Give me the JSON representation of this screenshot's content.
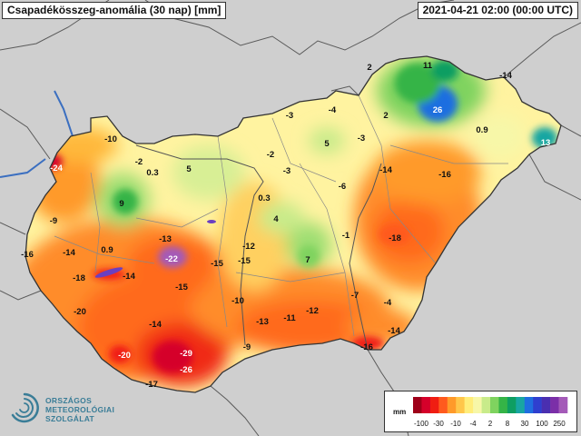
{
  "header": {
    "title": "Csapadékösszeg-anomália (30 nap) [mm]",
    "timestamp": "2021-04-21 02:00 (00:00 UTC)"
  },
  "map": {
    "country": "Hungary",
    "values": [
      {
        "id": "v01",
        "label": "11"
      },
      {
        "id": "v02",
        "label": "2"
      },
      {
        "id": "v03",
        "label": "-14"
      },
      {
        "id": "v04",
        "label": "26"
      },
      {
        "id": "v05",
        "label": "2"
      },
      {
        "id": "v06",
        "label": "0.9"
      },
      {
        "id": "v07",
        "label": "13"
      },
      {
        "id": "v08",
        "label": "-3"
      },
      {
        "id": "v09",
        "label": "-4"
      },
      {
        "id": "v10",
        "label": "5"
      },
      {
        "id": "v11",
        "label": "-3"
      },
      {
        "id": "v12",
        "label": "-10"
      },
      {
        "id": "v13",
        "label": "-24"
      },
      {
        "id": "v14",
        "label": "-2"
      },
      {
        "id": "v15",
        "label": "0.3"
      },
      {
        "id": "v16",
        "label": "5"
      },
      {
        "id": "v17",
        "label": "-2"
      },
      {
        "id": "v18",
        "label": "-3"
      },
      {
        "id": "v19",
        "label": "-14"
      },
      {
        "id": "v20",
        "label": "-16"
      },
      {
        "id": "v21",
        "label": "-6"
      },
      {
        "id": "v22",
        "label": "9"
      },
      {
        "id": "v23",
        "label": "0.3"
      },
      {
        "id": "v24",
        "label": "-9"
      },
      {
        "id": "v25",
        "label": "4"
      },
      {
        "id": "v26",
        "label": "-1"
      },
      {
        "id": "v27",
        "label": "-18"
      },
      {
        "id": "v28",
        "label": "-16"
      },
      {
        "id": "v29",
        "label": "-14"
      },
      {
        "id": "v30",
        "label": "0.9"
      },
      {
        "id": "v31",
        "label": "-13"
      },
      {
        "id": "v32",
        "label": "-22"
      },
      {
        "id": "v33",
        "label": "-12"
      },
      {
        "id": "v34",
        "label": "7"
      },
      {
        "id": "v35",
        "label": "-18"
      },
      {
        "id": "v36",
        "label": "-14"
      },
      {
        "id": "v37",
        "label": "-15"
      },
      {
        "id": "v38",
        "label": "-15"
      },
      {
        "id": "v39",
        "label": "-15"
      },
      {
        "id": "v40",
        "label": "-7"
      },
      {
        "id": "v41",
        "label": "-20"
      },
      {
        "id": "v42",
        "label": "-10"
      },
      {
        "id": "v43",
        "label": "-4"
      },
      {
        "id": "v44",
        "label": "-12"
      },
      {
        "id": "v45",
        "label": "-14"
      },
      {
        "id": "v46",
        "label": "-13"
      },
      {
        "id": "v47",
        "label": "-11"
      },
      {
        "id": "v48",
        "label": "-14"
      },
      {
        "id": "v49",
        "label": "-9"
      },
      {
        "id": "v50",
        "label": "-16"
      },
      {
        "id": "v51",
        "label": "-29"
      },
      {
        "id": "v52",
        "label": "-20"
      },
      {
        "id": "v53",
        "label": "-26"
      },
      {
        "id": "v54",
        "label": "-17"
      }
    ]
  },
  "logo": {
    "line1": "ORSZÁGOS",
    "line2": "METEOROLÓGIAI",
    "line3": "SZOLGÁLAT"
  },
  "legend": {
    "unit": "mm",
    "ticks": [
      "-100",
      "-30",
      "-10",
      "-4",
      "2",
      "8",
      "30",
      "100",
      "250"
    ],
    "colors": [
      "#9e0019",
      "#d5002a",
      "#f01d12",
      "#ff5a1e",
      "#ff9a2a",
      "#ffc64a",
      "#ffed7a",
      "#f7f7a8",
      "#c8eb8a",
      "#7fd35f",
      "#35b447",
      "#0e9e62",
      "#18a6a2",
      "#1f6ee0",
      "#2f3fcf",
      "#4a2fb0",
      "#7b2fa8",
      "#a45ab8"
    ]
  }
}
